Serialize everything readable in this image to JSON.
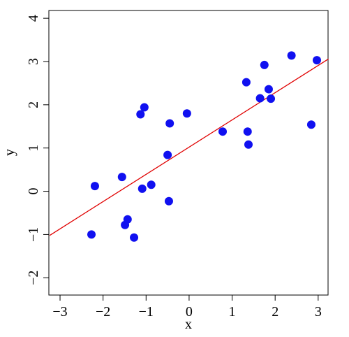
{
  "chart_data": {
    "type": "scatter",
    "xlabel": "x",
    "ylabel": "y",
    "xlim": [
      -3.26,
      3.23
    ],
    "ylim": [
      -2.4,
      4.18
    ],
    "xticks": [
      {
        "value": -3,
        "label": "−3"
      },
      {
        "value": -2,
        "label": "−2"
      },
      {
        "value": -1,
        "label": "−1"
      },
      0,
      1,
      2,
      3
    ],
    "yticks": [
      {
        "value": -2,
        "label": "−2"
      },
      {
        "value": -1,
        "label": "−1"
      },
      0,
      1,
      2,
      3,
      4
    ],
    "series": [
      {
        "color": "#1010f0",
        "x": [
          -2.27,
          -2.19,
          -1.56,
          -1.49,
          -1.43,
          -1.28,
          -1.13,
          -1.09,
          -1.04,
          -0.88,
          -0.5,
          -0.47,
          -0.45,
          -0.05,
          0.78,
          1.33,
          1.36,
          1.38,
          1.65,
          1.75,
          1.85,
          1.9,
          2.38,
          2.84,
          2.97
        ],
        "values": [
          -1.0,
          0.12,
          0.33,
          -0.78,
          -0.65,
          -1.07,
          1.78,
          0.06,
          1.94,
          0.15,
          0.84,
          -0.23,
          1.57,
          1.8,
          1.38,
          2.52,
          1.38,
          1.08,
          2.15,
          2.92,
          2.36,
          2.14,
          3.14,
          1.54,
          3.03
        ]
      }
    ],
    "lines": [
      {
        "color": "#e00000",
        "x": [
          -3.24,
          3.24
        ],
        "values": [
          -1.02,
          3.06
        ]
      }
    ]
  }
}
